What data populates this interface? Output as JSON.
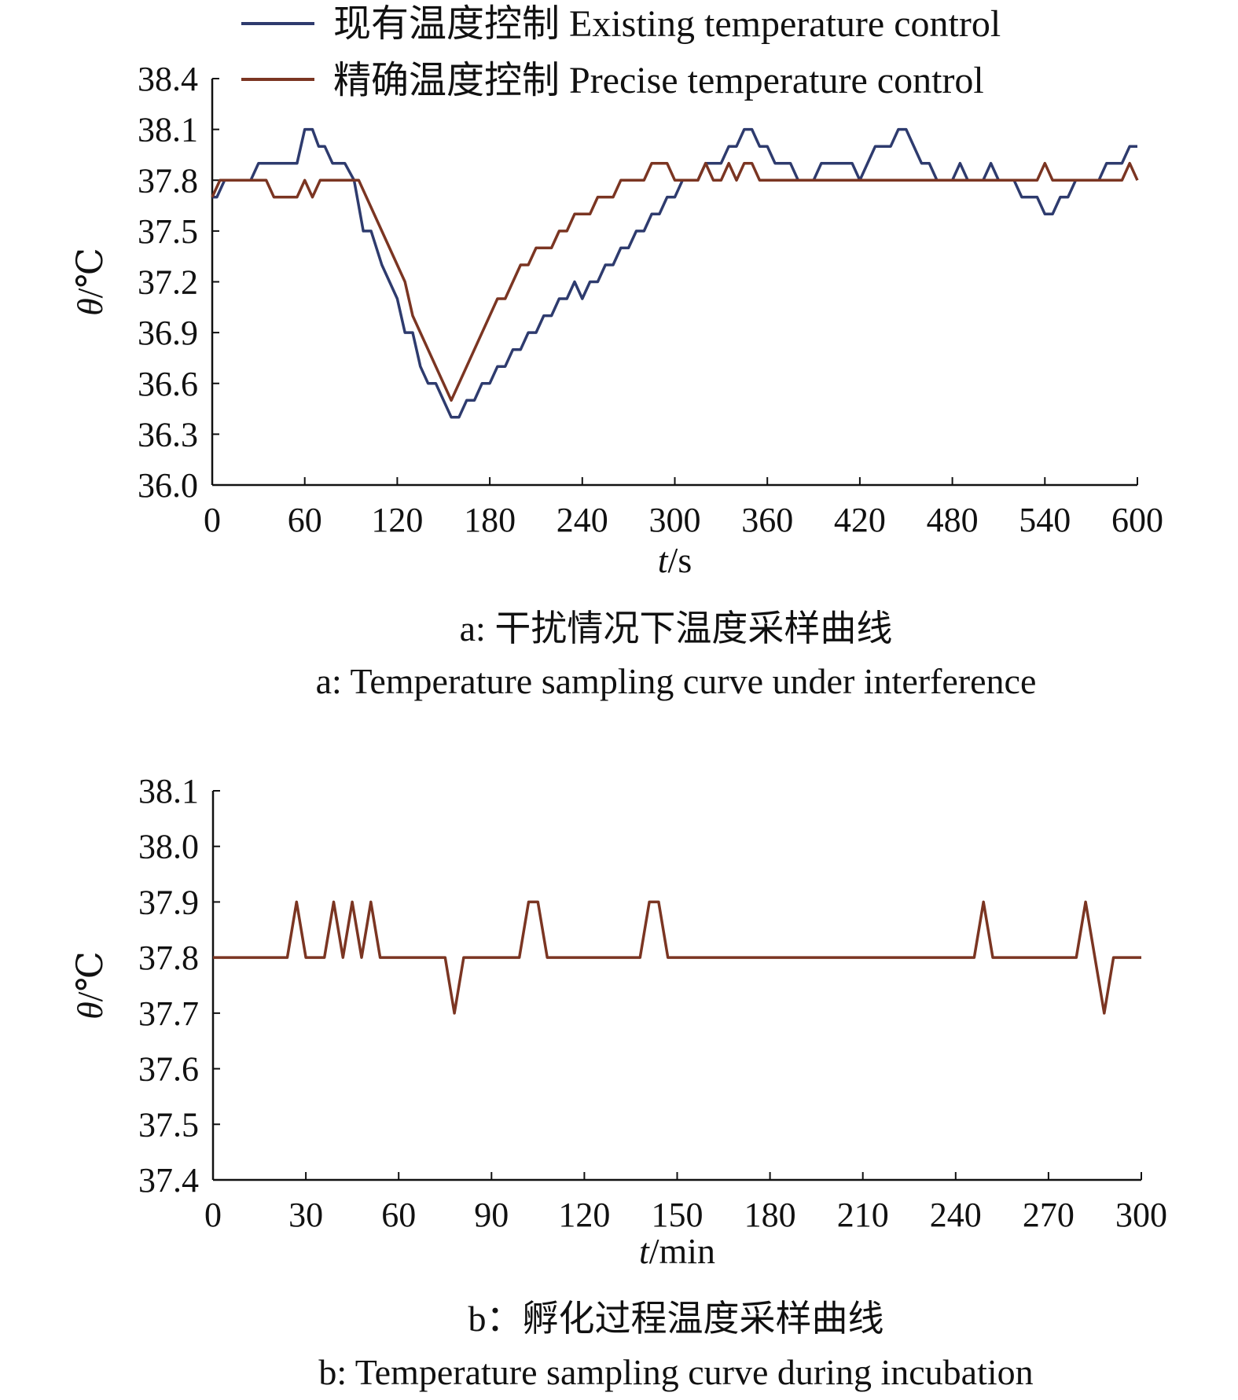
{
  "colors": {
    "existing": "#2e3b6e",
    "precise": "#7b3522"
  },
  "chart_data": [
    {
      "type": "line",
      "caption_cn": "a: 干扰情况下温度采样曲线",
      "caption_en": "a: Temperature sampling curve under interference",
      "xlabel_var": "t",
      "xlabel_unit": "/s",
      "ylabel_var": "θ",
      "ylabel_unit": "/℃",
      "xlim": [
        0,
        600
      ],
      "ylim": [
        36.0,
        38.4
      ],
      "xticks": [
        "0",
        "60",
        "120",
        "180",
        "240",
        "300",
        "360",
        "420",
        "480",
        "540",
        "600"
      ],
      "yticks": [
        "36.0",
        "36.3",
        "36.6",
        "36.9",
        "37.2",
        "37.5",
        "37.8",
        "38.1",
        "38.4"
      ],
      "legend_position": "top",
      "series": [
        {
          "name": "现有温度控制 Existing temperature control",
          "color_key": "existing",
          "points": [
            [
              0,
              37.7
            ],
            [
              3,
              37.7
            ],
            [
              8,
              37.8
            ],
            [
              25,
              37.8
            ],
            [
              30,
              37.9
            ],
            [
              55,
              37.9
            ],
            [
              60,
              38.1
            ],
            [
              65,
              38.1
            ],
            [
              69,
              38.0
            ],
            [
              73,
              38.0
            ],
            [
              78,
              37.9
            ],
            [
              86,
              37.9
            ],
            [
              92,
              37.8
            ],
            [
              98,
              37.5
            ],
            [
              103,
              37.5
            ],
            [
              110,
              37.3
            ],
            [
              120,
              37.1
            ],
            [
              125,
              36.9
            ],
            [
              130,
              36.9
            ],
            [
              135,
              36.7
            ],
            [
              140,
              36.6
            ],
            [
              145,
              36.6
            ],
            [
              155,
              36.4
            ],
            [
              160,
              36.4
            ],
            [
              165,
              36.5
            ],
            [
              170,
              36.5
            ],
            [
              175,
              36.6
            ],
            [
              180,
              36.6
            ],
            [
              185,
              36.7
            ],
            [
              190,
              36.7
            ],
            [
              195,
              36.8
            ],
            [
              200,
              36.8
            ],
            [
              205,
              36.9
            ],
            [
              210,
              36.9
            ],
            [
              215,
              37.0
            ],
            [
              220,
              37.0
            ],
            [
              225,
              37.1
            ],
            [
              230,
              37.1
            ],
            [
              235,
              37.2
            ],
            [
              240,
              37.1
            ],
            [
              245,
              37.2
            ],
            [
              250,
              37.2
            ],
            [
              255,
              37.3
            ],
            [
              260,
              37.3
            ],
            [
              265,
              37.4
            ],
            [
              270,
              37.4
            ],
            [
              275,
              37.5
            ],
            [
              280,
              37.5
            ],
            [
              285,
              37.6
            ],
            [
              290,
              37.6
            ],
            [
              295,
              37.7
            ],
            [
              300,
              37.7
            ],
            [
              305,
              37.8
            ],
            [
              315,
              37.8
            ],
            [
              320,
              37.9
            ],
            [
              330,
              37.9
            ],
            [
              335,
              38.0
            ],
            [
              340,
              38.0
            ],
            [
              345,
              38.1
            ],
            [
              350,
              38.1
            ],
            [
              355,
              38.0
            ],
            [
              360,
              38.0
            ],
            [
              365,
              37.9
            ],
            [
              375,
              37.9
            ],
            [
              380,
              37.8
            ],
            [
              390,
              37.8
            ],
            [
              395,
              37.9
            ],
            [
              415,
              37.9
            ],
            [
              420,
              37.8
            ],
            [
              430,
              38.0
            ],
            [
              440,
              38.0
            ],
            [
              445,
              38.1
            ],
            [
              450,
              38.1
            ],
            [
              460,
              37.9
            ],
            [
              465,
              37.9
            ],
            [
              470,
              37.8
            ],
            [
              480,
              37.8
            ],
            [
              485,
              37.9
            ],
            [
              490,
              37.8
            ],
            [
              500,
              37.8
            ],
            [
              505,
              37.9
            ],
            [
              510,
              37.8
            ],
            [
              520,
              37.8
            ],
            [
              525,
              37.7
            ],
            [
              535,
              37.7
            ],
            [
              540,
              37.6
            ],
            [
              545,
              37.6
            ],
            [
              550,
              37.7
            ],
            [
              555,
              37.7
            ],
            [
              560,
              37.8
            ],
            [
              575,
              37.8
            ],
            [
              580,
              37.9
            ],
            [
              590,
              37.9
            ],
            [
              595,
              38.0
            ],
            [
              600,
              38.0
            ]
          ]
        },
        {
          "name": "精确温度控制 Precise temperature control",
          "color_key": "precise",
          "points": [
            [
              0,
              37.7
            ],
            [
              5,
              37.8
            ],
            [
              35,
              37.8
            ],
            [
              40,
              37.7
            ],
            [
              55,
              37.7
            ],
            [
              60,
              37.8
            ],
            [
              65,
              37.7
            ],
            [
              70,
              37.8
            ],
            [
              95,
              37.8
            ],
            [
              125,
              37.2
            ],
            [
              130,
              37.0
            ],
            [
              155,
              36.5
            ],
            [
              185,
              37.1
            ],
            [
              190,
              37.1
            ],
            [
              200,
              37.3
            ],
            [
              205,
              37.3
            ],
            [
              210,
              37.4
            ],
            [
              220,
              37.4
            ],
            [
              225,
              37.5
            ],
            [
              230,
              37.5
            ],
            [
              235,
              37.6
            ],
            [
              245,
              37.6
            ],
            [
              250,
              37.7
            ],
            [
              260,
              37.7
            ],
            [
              265,
              37.8
            ],
            [
              280,
              37.8
            ],
            [
              285,
              37.9
            ],
            [
              295,
              37.9
            ],
            [
              300,
              37.8
            ],
            [
              315,
              37.8
            ],
            [
              320,
              37.9
            ],
            [
              325,
              37.8
            ],
            [
              330,
              37.8
            ],
            [
              335,
              37.9
            ],
            [
              340,
              37.8
            ],
            [
              345,
              37.9
            ],
            [
              350,
              37.9
            ],
            [
              355,
              37.8
            ],
            [
              535,
              37.8
            ],
            [
              540,
              37.9
            ],
            [
              545,
              37.8
            ],
            [
              590,
              37.8
            ],
            [
              595,
              37.9
            ],
            [
              600,
              37.8
            ]
          ]
        }
      ]
    },
    {
      "type": "line",
      "caption_cn": "b：孵化过程温度采样曲线",
      "caption_en": "b: Temperature sampling curve during incubation",
      "xlabel_var": "t",
      "xlabel_unit": "/min",
      "ylabel_var": "θ",
      "ylabel_unit": "/℃",
      "xlim": [
        0,
        300
      ],
      "ylim": [
        37.4,
        38.1
      ],
      "xticks": [
        "0",
        "30",
        "60",
        "90",
        "120",
        "150",
        "180",
        "210",
        "240",
        "270",
        "300"
      ],
      "yticks": [
        "37.4",
        "37.5",
        "37.6",
        "37.7",
        "37.8",
        "37.9",
        "38.0",
        "38.1"
      ],
      "series": [
        {
          "name": "精确温度控制 Precise temperature control",
          "color_key": "precise",
          "points": [
            [
              0,
              37.8
            ],
            [
              24,
              37.8
            ],
            [
              27,
              37.9
            ],
            [
              30,
              37.8
            ],
            [
              36,
              37.8
            ],
            [
              39,
              37.9
            ],
            [
              42,
              37.8
            ],
            [
              45,
              37.9
            ],
            [
              48,
              37.8
            ],
            [
              51,
              37.9
            ],
            [
              54,
              37.8
            ],
            [
              75,
              37.8
            ],
            [
              78,
              37.7
            ],
            [
              81,
              37.8
            ],
            [
              99,
              37.8
            ],
            [
              102,
              37.9
            ],
            [
              105,
              37.9
            ],
            [
              108,
              37.8
            ],
            [
              138,
              37.8
            ],
            [
              141,
              37.9
            ],
            [
              144,
              37.9
            ],
            [
              147,
              37.8
            ],
            [
              246,
              37.8
            ],
            [
              249,
              37.9
            ],
            [
              252,
              37.8
            ],
            [
              279,
              37.8
            ],
            [
              282,
              37.9
            ],
            [
              288,
              37.7
            ],
            [
              291,
              37.8
            ],
            [
              300,
              37.8
            ]
          ]
        }
      ]
    }
  ]
}
